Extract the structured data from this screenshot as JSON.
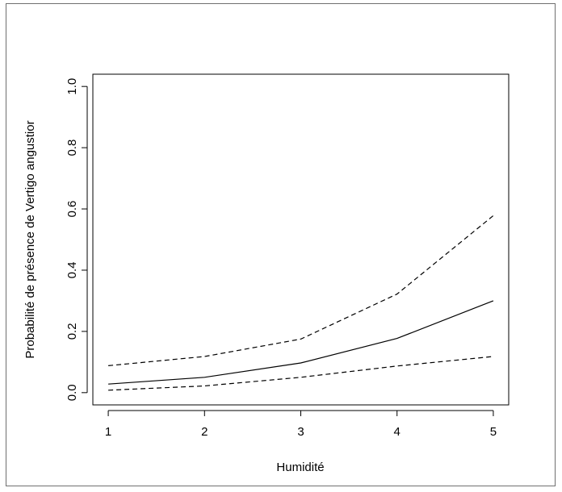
{
  "chart_data": {
    "type": "line",
    "title": "",
    "xlabel": "Humidité",
    "ylabel": "Probabilité de présence de Vertigo angustior",
    "x": [
      1,
      2,
      3,
      4,
      5
    ],
    "xticks": [
      "1",
      "2",
      "3",
      "4",
      "5"
    ],
    "yticks": [
      "0.0",
      "0.2",
      "0.4",
      "0.6",
      "0.8",
      "1.0"
    ],
    "ytick_values": [
      0,
      0.2,
      0.4,
      0.6,
      0.8,
      1.0
    ],
    "xlim": [
      0.84,
      5.16
    ],
    "ylim": [
      -0.04,
      1.04
    ],
    "grid": false,
    "series": [
      {
        "style": "solid",
        "color": "#000000",
        "values": [
          0.028,
          0.05,
          0.097,
          0.177,
          0.3
        ]
      },
      {
        "style": "dashed",
        "color": "#000000",
        "values": [
          0.088,
          0.118,
          0.175,
          0.322,
          0.578
        ]
      },
      {
        "style": "dashed",
        "color": "#000000",
        "values": [
          0.008,
          0.022,
          0.05,
          0.087,
          0.118
        ]
      }
    ]
  }
}
